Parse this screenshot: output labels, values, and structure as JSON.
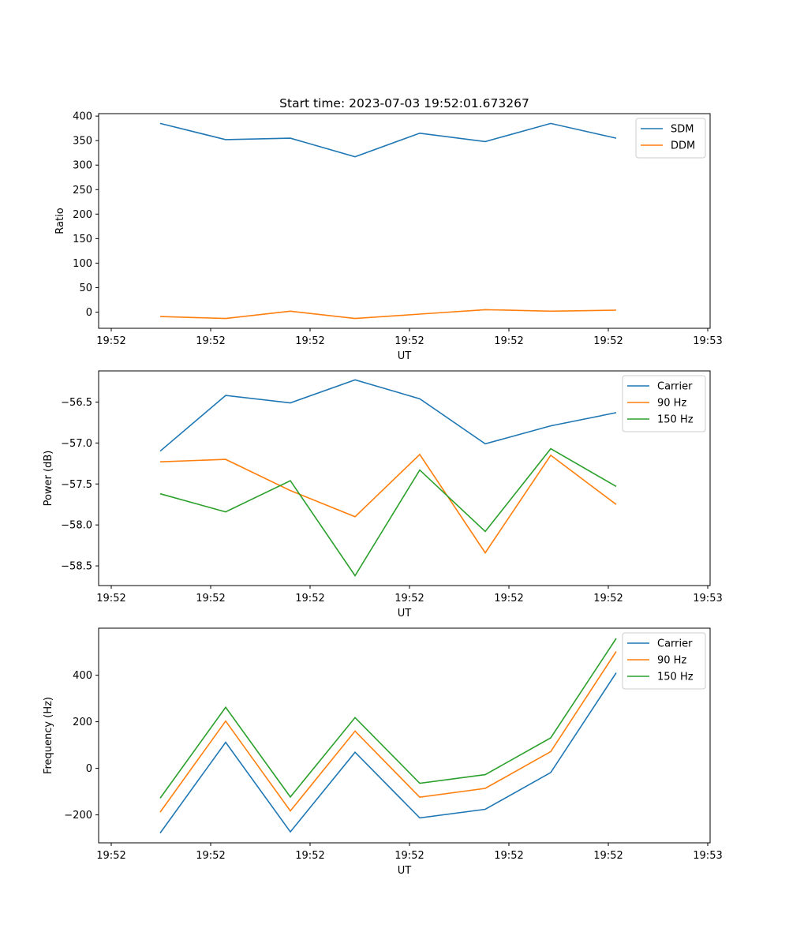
{
  "figure_title": "Start time: 2023-07-03 19:52:01.673267",
  "chart_data": [
    {
      "type": "line",
      "title": "Start time: 2023-07-03 19:52:01.673267",
      "xlabel": "UT",
      "ylabel": "Ratio",
      "x_tick_labels": [
        "19:52",
        "19:52",
        "19:52",
        "19:52",
        "19:52",
        "19:52",
        "19:53"
      ],
      "y_ticks": [
        0,
        50,
        100,
        150,
        200,
        250,
        300,
        350,
        400
      ],
      "ylim": [
        -33,
        405
      ],
      "legend": "top-right",
      "series": [
        {
          "name": "SDM",
          "color": "#1f77b4",
          "values": [
            385,
            352,
            355,
            317,
            365,
            348,
            385,
            355
          ]
        },
        {
          "name": "DDM",
          "color": "#ff7f0e",
          "values": [
            -9,
            -13,
            2,
            -13,
            -4,
            5,
            2,
            4
          ]
        }
      ]
    },
    {
      "type": "line",
      "title": "",
      "xlabel": "UT",
      "ylabel": "Power (dB)",
      "x_tick_labels": [
        "19:52",
        "19:52",
        "19:52",
        "19:52",
        "19:52",
        "19:52",
        "19:53"
      ],
      "y_ticks": [
        -56.5,
        -57.0,
        -57.5,
        -58.0,
        -58.5
      ],
      "y_tick_labels": [
        "−56.5",
        "−57.0",
        "−57.5",
        "−58.0",
        "−58.5"
      ],
      "ylim": [
        -58.74,
        -56.12
      ],
      "legend": "top-right",
      "series": [
        {
          "name": "Carrier",
          "color": "#1f77b4",
          "values": [
            -57.1,
            -56.42,
            -56.51,
            -56.23,
            -56.46,
            -57.01,
            -56.79,
            -56.63
          ]
        },
        {
          "name": "90 Hz",
          "color": "#ff7f0e",
          "values": [
            -57.23,
            -57.2,
            -57.58,
            -57.9,
            -57.14,
            -58.34,
            -57.15,
            -57.75
          ]
        },
        {
          "name": "150 Hz",
          "color": "#2ca02c",
          "values": [
            -57.62,
            -57.84,
            -57.46,
            -58.62,
            -57.33,
            -58.08,
            -57.07,
            -57.53
          ]
        }
      ]
    },
    {
      "type": "line",
      "title": "",
      "xlabel": "UT",
      "ylabel": "Frequency (Hz)",
      "x_tick_labels": [
        "19:52",
        "19:52",
        "19:52",
        "19:52",
        "19:52",
        "19:52",
        "19:53"
      ],
      "y_ticks": [
        400,
        200,
        0,
        -200
      ],
      "y_tick_labels": [
        "400",
        "200",
        "0",
        "−200"
      ],
      "ylim": [
        -320,
        602
      ],
      "legend": "top-right",
      "series": [
        {
          "name": "Carrier",
          "color": "#1f77b4",
          "values": [
            -278,
            112,
            -273,
            69,
            -213,
            -176,
            -18,
            410
          ]
        },
        {
          "name": "90 Hz",
          "color": "#ff7f0e",
          "values": [
            -188,
            203,
            -183,
            160,
            -124,
            -86,
            72,
            502
          ]
        },
        {
          "name": "150 Hz",
          "color": "#2ca02c",
          "values": [
            -128,
            262,
            -123,
            218,
            -64,
            -27,
            131,
            558
          ]
        }
      ]
    }
  ]
}
